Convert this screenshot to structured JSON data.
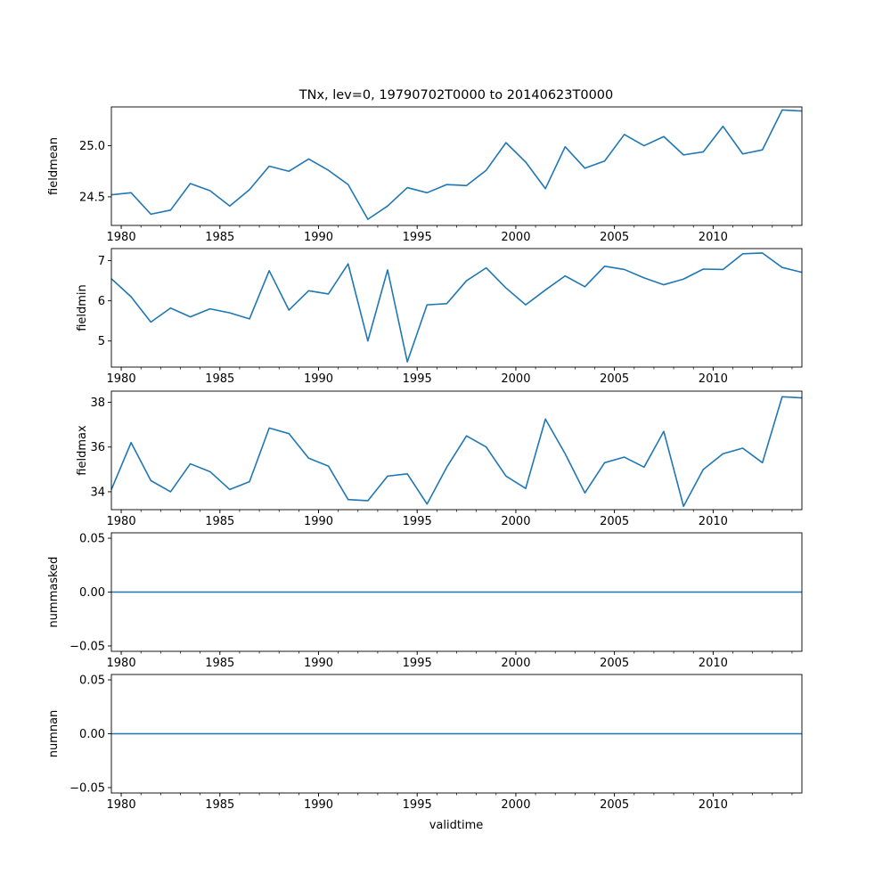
{
  "figure_title": "TNx, lev=0, 19790702T0000 to 20140623T0000",
  "xlabel": "validtime",
  "line_color": "#1f77b4",
  "x_tick_labels": [
    "1980",
    "1985",
    "1990",
    "1995",
    "2000",
    "2005",
    "2010"
  ],
  "chart_data": [
    {
      "type": "line",
      "ylabel": "fieldmean",
      "xlim": [
        1979.5,
        2014.5
      ],
      "ylim": [
        24.22,
        25.38
      ],
      "yticks": [
        24.5,
        25.0
      ],
      "ytick_labels": [
        "24.5",
        "25.0"
      ],
      "x": [
        1979.5,
        1980.5,
        1981.5,
        1982.5,
        1983.5,
        1984.5,
        1985.5,
        1986.5,
        1987.5,
        1988.5,
        1989.5,
        1990.5,
        1991.5,
        1992.5,
        1993.5,
        1994.5,
        1995.5,
        1996.5,
        1997.5,
        1998.5,
        1999.5,
        2000.5,
        2001.5,
        2002.5,
        2003.5,
        2004.5,
        2005.5,
        2006.5,
        2007.5,
        2008.5,
        2009.5,
        2010.5,
        2011.5,
        2012.5,
        2013.5,
        2014.5
      ],
      "y": [
        24.52,
        24.54,
        24.33,
        24.37,
        24.63,
        24.56,
        24.41,
        24.57,
        24.8,
        24.75,
        24.87,
        24.76,
        24.62,
        24.28,
        24.41,
        24.59,
        24.54,
        24.62,
        24.61,
        24.76,
        25.03,
        24.84,
        24.58,
        24.99,
        24.78,
        24.85,
        25.11,
        25.0,
        25.09,
        24.91,
        24.94,
        25.19,
        24.92,
        24.96,
        25.35,
        25.34
      ]
    },
    {
      "type": "line",
      "ylabel": "fieldmin",
      "xlim": [
        1979.5,
        2014.5
      ],
      "ylim": [
        4.35,
        7.3
      ],
      "yticks": [
        5,
        6,
        7
      ],
      "ytick_labels": [
        "5",
        "6",
        "7"
      ],
      "x": [
        1979.5,
        1980.5,
        1981.5,
        1982.5,
        1983.5,
        1984.5,
        1985.5,
        1986.5,
        1987.5,
        1988.5,
        1989.5,
        1990.5,
        1991.5,
        1992.5,
        1993.5,
        1994.5,
        1995.5,
        1996.5,
        1997.5,
        1998.5,
        1999.5,
        2000.5,
        2001.5,
        2002.5,
        2003.5,
        2004.5,
        2005.5,
        2006.5,
        2007.5,
        2008.5,
        2009.5,
        2010.5,
        2011.5,
        2012.5,
        2013.5,
        2014.5
      ],
      "y": [
        6.55,
        6.1,
        5.47,
        5.82,
        5.6,
        5.8,
        5.7,
        5.55,
        6.75,
        5.77,
        6.25,
        6.17,
        6.92,
        5.0,
        6.77,
        4.48,
        5.9,
        5.93,
        6.5,
        6.82,
        6.32,
        5.9,
        6.27,
        6.62,
        6.35,
        6.86,
        6.78,
        6.57,
        6.4,
        6.54,
        6.79,
        6.78,
        7.17,
        7.19,
        6.83,
        6.71
      ]
    },
    {
      "type": "line",
      "ylabel": "fieldmax",
      "xlim": [
        1979.5,
        2014.5
      ],
      "ylim": [
        33.2,
        38.5
      ],
      "yticks": [
        34,
        36,
        38
      ],
      "ytick_labels": [
        "34",
        "36",
        "38"
      ],
      "x": [
        1979.5,
        1980.5,
        1981.5,
        1982.5,
        1983.5,
        1984.5,
        1985.5,
        1986.5,
        1987.5,
        1988.5,
        1989.5,
        1990.5,
        1991.5,
        1992.5,
        1993.5,
        1994.5,
        1995.5,
        1996.5,
        1997.5,
        1998.5,
        1999.5,
        2000.5,
        2001.5,
        2002.5,
        2003.5,
        2004.5,
        2005.5,
        2006.5,
        2007.5,
        2008.5,
        2009.5,
        2010.5,
        2011.5,
        2012.5,
        2013.5,
        2014.5
      ],
      "y": [
        34.1,
        36.2,
        34.5,
        34.0,
        35.25,
        34.9,
        34.1,
        34.45,
        36.85,
        36.6,
        35.5,
        35.15,
        33.65,
        33.6,
        34.7,
        34.8,
        33.45,
        35.1,
        36.5,
        36.0,
        34.7,
        34.15,
        37.25,
        35.7,
        33.95,
        35.3,
        35.55,
        35.1,
        36.7,
        33.35,
        35.0,
        35.7,
        35.95,
        35.3,
        38.25,
        38.2
      ]
    },
    {
      "type": "line",
      "ylabel": "nummasked",
      "xlim": [
        1979.5,
        2014.5
      ],
      "ylim": [
        -0.055,
        0.055
      ],
      "yticks": [
        -0.05,
        0.0,
        0.05
      ],
      "ytick_labels": [
        "−0.05",
        "0.00",
        "0.05"
      ],
      "x": [
        1979.5,
        2014.5
      ],
      "y": [
        0,
        0
      ]
    },
    {
      "type": "line",
      "ylabel": "numnan",
      "xlim": [
        1979.5,
        2014.5
      ],
      "ylim": [
        -0.055,
        0.055
      ],
      "yticks": [
        -0.05,
        0.0,
        0.05
      ],
      "ytick_labels": [
        "−0.05",
        "0.00",
        "0.05"
      ],
      "x": [
        1979.5,
        2014.5
      ],
      "y": [
        0,
        0
      ]
    }
  ]
}
